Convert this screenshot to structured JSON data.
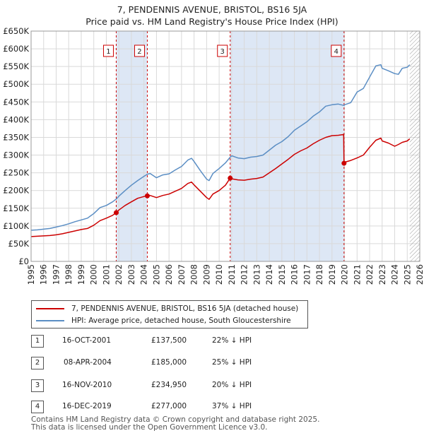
{
  "title_line1": "7, PENDENNIS AVENUE, BRISTOL, BS16 5JA",
  "title_line2": "Price paid vs. HM Land Registry's House Price Index (HPI)",
  "colors": {
    "property": "#cc0000",
    "hpi": "#5b8ec4",
    "shade": "#dde7f5",
    "grid": "#d9d9d9"
  },
  "legend": {
    "property_label": "7, PENDENNIS AVENUE, BRISTOL, BS16 5JA (detached house)",
    "hpi_label": "HPI: Average price, detached house, South Gloucestershire"
  },
  "transactions": [
    {
      "num": "1",
      "date": "16-OCT-2001",
      "price": "£137,500",
      "hpi_diff": "22% ↓ HPI"
    },
    {
      "num": "2",
      "date": "08-APR-2004",
      "price": "£185,000",
      "hpi_diff": "25% ↓ HPI"
    },
    {
      "num": "3",
      "date": "16-NOV-2010",
      "price": "£234,950",
      "hpi_diff": "20% ↓ HPI"
    },
    {
      "num": "4",
      "date": "16-DEC-2019",
      "price": "£277,000",
      "hpi_diff": "37% ↓ HPI"
    }
  ],
  "footer_line1": "Contains HM Land Registry data © Crown copyright and database right 2025.",
  "footer_line2": "This data is licensed under the Open Government Licence v3.0.",
  "chart_data": {
    "type": "line",
    "title": "7, PENDENNIS AVENUE, BRISTOL, BS16 5JA — Price paid vs. HM Land Registry's House Price Index (HPI)",
    "xlabel": "",
    "ylabel": "",
    "xlim": [
      1995,
      2026
    ],
    "ylim": [
      0,
      650000
    ],
    "x_ticks": [
      1995,
      1996,
      1997,
      1998,
      1999,
      2000,
      2001,
      2002,
      2003,
      2004,
      2005,
      2006,
      2007,
      2008,
      2009,
      2010,
      2011,
      2012,
      2013,
      2014,
      2015,
      2016,
      2017,
      2018,
      2019,
      2020,
      2021,
      2022,
      2023,
      2024,
      2025,
      2026
    ],
    "y_ticks": [
      0,
      50000,
      100000,
      150000,
      200000,
      250000,
      300000,
      350000,
      400000,
      450000,
      500000,
      550000,
      600000,
      650000
    ],
    "y_tick_labels": [
      "£0",
      "£50K",
      "£100K",
      "£150K",
      "£200K",
      "£250K",
      "£300K",
      "£350K",
      "£400K",
      "£450K",
      "£500K",
      "£550K",
      "£600K",
      "£650K"
    ],
    "grid": true,
    "forecast_hatch_from": 2025.2,
    "shaded_ranges": [
      [
        2001.79,
        2004.27
      ],
      [
        2010.88,
        2019.96
      ]
    ],
    "markers": [
      {
        "label": "1",
        "x": 2001.79,
        "y": 137500
      },
      {
        "label": "2",
        "x": 2004.27,
        "y": 185000
      },
      {
        "label": "3",
        "x": 2010.88,
        "y": 234950
      },
      {
        "label": "4",
        "x": 2019.96,
        "y": 277000
      }
    ],
    "series": [
      {
        "name": "HPI: Average price, detached house, South Gloucestershire",
        "x": [
          1995,
          1995.5,
          1996,
          1996.5,
          1997,
          1997.5,
          1998,
          1998.5,
          1999,
          1999.5,
          2000,
          2000.5,
          2001,
          2001.5,
          2001.79,
          2002,
          2002.5,
          2003,
          2003.5,
          2004,
          2004.27,
          2004.5,
          2005,
          2005.5,
          2006,
          2006.5,
          2007,
          2007.5,
          2007.8,
          2008,
          2008.5,
          2009,
          2009.2,
          2009.5,
          2010,
          2010.5,
          2010.88,
          2011,
          2011.5,
          2012,
          2012.5,
          2013,
          2013.5,
          2014,
          2014.5,
          2015,
          2015.5,
          2016,
          2016.5,
          2017,
          2017.5,
          2018,
          2018.5,
          2019,
          2019.5,
          2019.96,
          2020,
          2020.5,
          2021,
          2021.5,
          2022,
          2022.5,
          2022.9,
          2023,
          2023.5,
          2024,
          2024.3,
          2024.6,
          2025,
          2025.2
        ],
        "values": [
          88000,
          89000,
          91000,
          93000,
          97000,
          101000,
          106000,
          112000,
          117000,
          122000,
          135000,
          152000,
          158000,
          168000,
          176000,
          184000,
          200000,
          215000,
          228000,
          240000,
          246000,
          248000,
          236000,
          244000,
          247000,
          258000,
          268000,
          286000,
          291000,
          282000,
          256000,
          232000,
          228000,
          248000,
          262000,
          278000,
          294000,
          298000,
          292000,
          290000,
          294000,
          296000,
          300000,
          314000,
          328000,
          338000,
          352000,
          370000,
          382000,
          394000,
          410000,
          422000,
          438000,
          442000,
          444000,
          440000,
          442000,
          448000,
          478000,
          488000,
          520000,
          552000,
          555000,
          545000,
          538000,
          530000,
          528000,
          545000,
          548000,
          555000
        ]
      },
      {
        "name": "7, PENDENNIS AVENUE, BRISTOL, BS16 5JA (detached house)",
        "x": [
          1995,
          1995.5,
          1996,
          1996.5,
          1997,
          1997.5,
          1998,
          1998.5,
          1999,
          1999.5,
          2000,
          2000.5,
          2001,
          2001.5,
          2001.79,
          2002,
          2002.5,
          2003,
          2003.5,
          2004,
          2004.27,
          2004.5,
          2005,
          2005.5,
          2006,
          2006.5,
          2007,
          2007.5,
          2007.8,
          2008,
          2008.5,
          2009,
          2009.2,
          2009.5,
          2010,
          2010.5,
          2010.88,
          2011,
          2011.5,
          2012,
          2012.5,
          2013,
          2013.5,
          2014,
          2014.5,
          2015,
          2015.5,
          2016,
          2016.5,
          2017,
          2017.5,
          2018,
          2018.5,
          2019,
          2019.5,
          2019.93,
          2019.96,
          2020,
          2020.5,
          2021,
          2021.5,
          2022,
          2022.5,
          2022.9,
          2023,
          2023.5,
          2024,
          2024.3,
          2024.6,
          2025,
          2025.2
        ],
        "values": [
          70000,
          71000,
          72000,
          73000,
          75000,
          78000,
          82000,
          86000,
          90000,
          93000,
          102000,
          115000,
          122000,
          130000,
          137500,
          145000,
          158000,
          168000,
          178000,
          183000,
          185000,
          186000,
          180000,
          186000,
          190000,
          198000,
          206000,
          220000,
          224000,
          216000,
          198000,
          180000,
          175000,
          190000,
          200000,
          215000,
          234950,
          233000,
          230000,
          229000,
          232000,
          234000,
          238000,
          250000,
          262000,
          275000,
          288000,
          302000,
          312000,
          320000,
          332000,
          342000,
          350000,
          355000,
          356000,
          358000,
          277000,
          280000,
          285000,
          292000,
          300000,
          322000,
          342000,
          348000,
          340000,
          334000,
          325000,
          330000,
          336000,
          340000,
          346000
        ]
      }
    ]
  }
}
